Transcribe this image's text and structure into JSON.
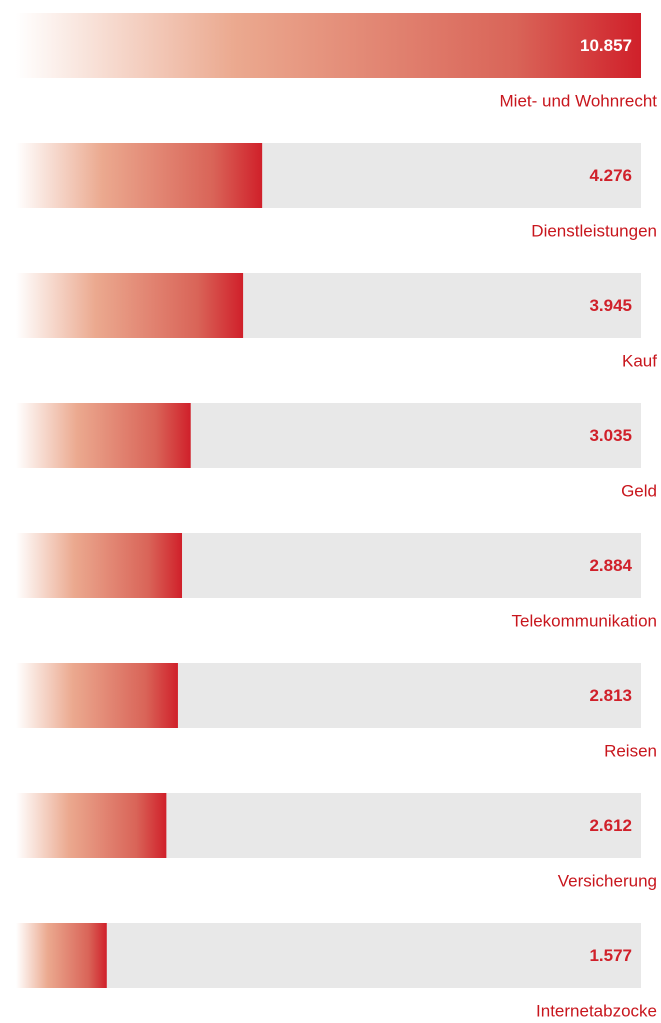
{
  "chart_data": {
    "type": "bar",
    "orientation": "horizontal",
    "categories": [
      "Miet- und Wohnrecht",
      "Dienstleistungen",
      "Kauf",
      "Geld",
      "Telekommunikation",
      "Reisen",
      "Versicherung",
      "Internetabzocke"
    ],
    "values": [
      10857,
      4276,
      3945,
      3035,
      2884,
      2813,
      2612,
      1577
    ],
    "value_labels": [
      "10.857",
      "4.276",
      "3.945",
      "3.035",
      "2.884",
      "2.813",
      "2.612",
      "1.577"
    ],
    "color": "#d0202a",
    "xlim": [
      0,
      10857
    ]
  }
}
